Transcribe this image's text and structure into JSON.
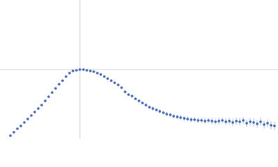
{
  "chart_data": {
    "type": "scatter",
    "color": "#3a63b8",
    "errorbar_color": "#a9bde3",
    "refline_color": "#d0d0d0",
    "xlim": [
      0,
      4
    ],
    "ylim": [
      0,
      2
    ],
    "vline_x": 1.15,
    "hline_y": 1.0,
    "x": [
      0.15,
      0.2,
      0.25,
      0.3,
      0.35,
      0.4,
      0.45,
      0.5,
      0.55,
      0.6,
      0.65,
      0.7,
      0.75,
      0.8,
      0.85,
      0.9,
      0.95,
      1.0,
      1.05,
      1.1,
      1.15,
      1.2,
      1.25,
      1.3,
      1.35,
      1.4,
      1.45,
      1.5,
      1.55,
      1.6,
      1.65,
      1.7,
      1.75,
      1.8,
      1.85,
      1.9,
      1.95,
      2.0,
      2.05,
      2.1,
      2.15,
      2.2,
      2.25,
      2.3,
      2.35,
      2.4,
      2.45,
      2.5,
      2.55,
      2.6,
      2.65,
      2.7,
      2.75,
      2.8,
      2.85,
      2.9,
      2.95,
      3.0,
      3.05,
      3.1,
      3.15,
      3.2,
      3.25,
      3.3,
      3.35,
      3.4,
      3.45,
      3.5,
      3.55,
      3.6,
      3.65,
      3.7,
      3.75,
      3.8,
      3.85,
      3.9,
      3.95
    ],
    "values": [
      0.05,
      0.1,
      0.15,
      0.19,
      0.24,
      0.29,
      0.34,
      0.39,
      0.44,
      0.49,
      0.55,
      0.61,
      0.67,
      0.73,
      0.79,
      0.84,
      0.9,
      0.95,
      0.98,
      0.99,
      1.0,
      1.0,
      0.99,
      0.98,
      0.97,
      0.95,
      0.93,
      0.9,
      0.87,
      0.84,
      0.81,
      0.78,
      0.74,
      0.68,
      0.64,
      0.62,
      0.58,
      0.55,
      0.52,
      0.49,
      0.46,
      0.44,
      0.42,
      0.4,
      0.38,
      0.36,
      0.35,
      0.33,
      0.32,
      0.31,
      0.3,
      0.29,
      0.28,
      0.28,
      0.27,
      0.27,
      0.26,
      0.27,
      0.26,
      0.25,
      0.26,
      0.27,
      0.25,
      0.26,
      0.24,
      0.26,
      0.25,
      0.27,
      0.23,
      0.25,
      0.24,
      0.22,
      0.25,
      0.21,
      0.23,
      0.2,
      0.19
    ],
    "errors": [
      0.01,
      0.01,
      0.01,
      0.01,
      0.01,
      0.01,
      0.01,
      0.01,
      0.01,
      0.01,
      0.01,
      0.01,
      0.01,
      0.01,
      0.01,
      0.01,
      0.01,
      0.01,
      0.01,
      0.01,
      0.01,
      0.01,
      0.01,
      0.01,
      0.01,
      0.01,
      0.01,
      0.012,
      0.013,
      0.014,
      0.015,
      0.016,
      0.017,
      0.018,
      0.019,
      0.02,
      0.021,
      0.022,
      0.023,
      0.024,
      0.025,
      0.026,
      0.027,
      0.028,
      0.029,
      0.03,
      0.031,
      0.032,
      0.033,
      0.034,
      0.035,
      0.036,
      0.037,
      0.038,
      0.039,
      0.04,
      0.041,
      0.042,
      0.043,
      0.044,
      0.045,
      0.046,
      0.047,
      0.048,
      0.049,
      0.05,
      0.051,
      0.052,
      0.053,
      0.054,
      0.055,
      0.056,
      0.057,
      0.058,
      0.059,
      0.06,
      0.061
    ]
  }
}
